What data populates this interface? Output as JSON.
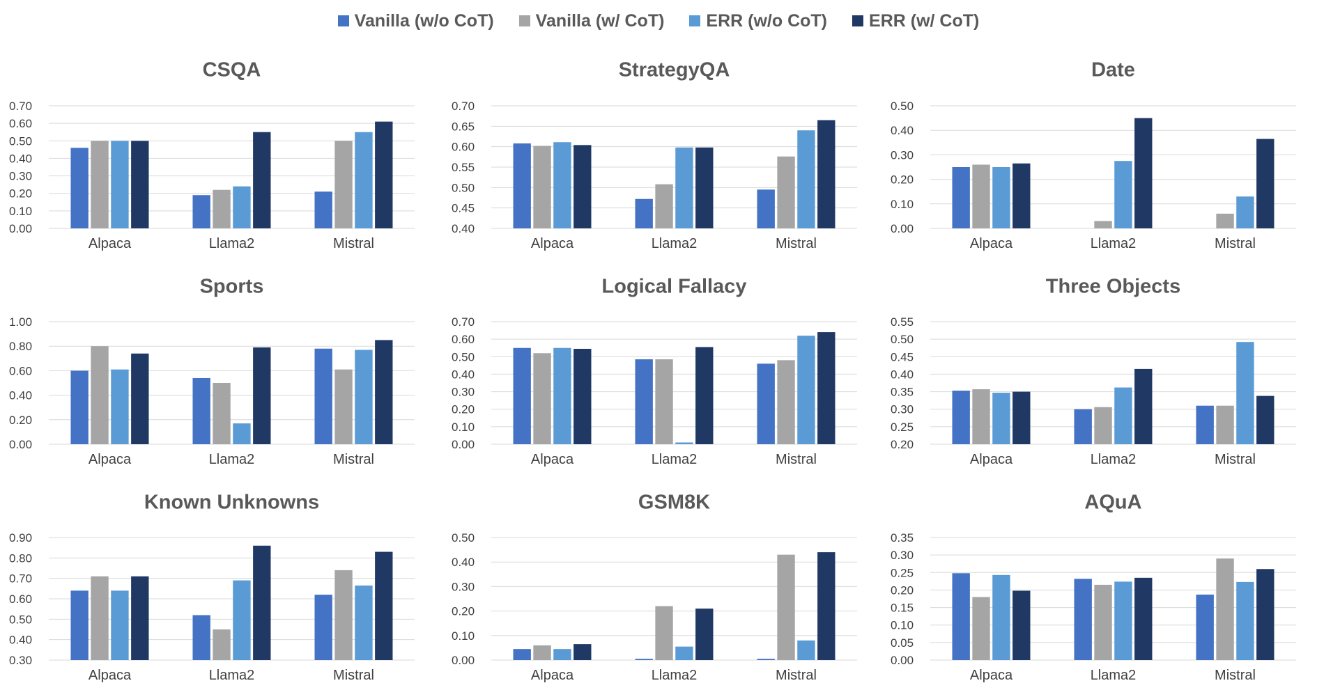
{
  "legend": [
    {
      "name": "Vanilla (w/o CoT)",
      "color": "#4472C4"
    },
    {
      "name": "Vanilla (w/ CoT)",
      "color": "#A5A5A5"
    },
    {
      "name": "ERR (w/o CoT)",
      "color": "#5B9BD5"
    },
    {
      "name": "ERR (w/ CoT)",
      "color": "#203864"
    }
  ],
  "chart_data": [
    {
      "type": "bar",
      "title": "CSQA",
      "categories": [
        "Alpaca",
        "Llama2",
        "Mistral"
      ],
      "ylim": [
        0,
        0.7
      ],
      "yticks": [
        "0.00",
        "0.10",
        "0.20",
        "0.30",
        "0.40",
        "0.50",
        "0.60",
        "0.70"
      ],
      "series": [
        {
          "name": "Vanilla (w/o CoT)",
          "values": [
            0.46,
            0.19,
            0.21
          ]
        },
        {
          "name": "Vanilla (w/ CoT)",
          "values": [
            0.5,
            0.22,
            0.5
          ]
        },
        {
          "name": "ERR (w/o CoT)",
          "values": [
            0.5,
            0.24,
            0.55
          ]
        },
        {
          "name": "ERR (w/ CoT)",
          "values": [
            0.5,
            0.55,
            0.61
          ]
        }
      ]
    },
    {
      "type": "bar",
      "title": "StrategyQA",
      "categories": [
        "Alpaca",
        "Llama2",
        "Mistral"
      ],
      "ylim": [
        0.4,
        0.7
      ],
      "yticks": [
        "0.40",
        "0.45",
        "0.50",
        "0.55",
        "0.60",
        "0.65",
        "0.70"
      ],
      "series": [
        {
          "name": "Vanilla (w/o CoT)",
          "values": [
            0.608,
            0.472,
            0.495
          ]
        },
        {
          "name": "Vanilla (w/ CoT)",
          "values": [
            0.602,
            0.508,
            0.576
          ]
        },
        {
          "name": "ERR (w/o CoT)",
          "values": [
            0.611,
            0.598,
            0.64
          ]
        },
        {
          "name": "ERR (w/ CoT)",
          "values": [
            0.604,
            0.598,
            0.665
          ]
        }
      ]
    },
    {
      "type": "bar",
      "title": "Date",
      "categories": [
        "Alpaca",
        "Llama2",
        "Mistral"
      ],
      "ylim": [
        0,
        0.5
      ],
      "yticks": [
        "0.00",
        "0.10",
        "0.20",
        "0.30",
        "0.40",
        "0.50"
      ],
      "series": [
        {
          "name": "Vanilla (w/o CoT)",
          "values": [
            0.25,
            0.0,
            0.0
          ]
        },
        {
          "name": "Vanilla (w/ CoT)",
          "values": [
            0.26,
            0.03,
            0.06
          ]
        },
        {
          "name": "ERR (w/o CoT)",
          "values": [
            0.25,
            0.275,
            0.13
          ]
        },
        {
          "name": "ERR (w/ CoT)",
          "values": [
            0.265,
            0.45,
            0.365
          ]
        }
      ]
    },
    {
      "type": "bar",
      "title": "Sports",
      "categories": [
        "Alpaca",
        "Llama2",
        "Mistral"
      ],
      "ylim": [
        0,
        1.0
      ],
      "yticks": [
        "0.00",
        "0.20",
        "0.40",
        "0.60",
        "0.80",
        "1.00"
      ],
      "series": [
        {
          "name": "Vanilla (w/o CoT)",
          "values": [
            0.6,
            0.54,
            0.78
          ]
        },
        {
          "name": "Vanilla (w/ CoT)",
          "values": [
            0.8,
            0.5,
            0.61
          ]
        },
        {
          "name": "ERR (w/o CoT)",
          "values": [
            0.61,
            0.17,
            0.77
          ]
        },
        {
          "name": "ERR (w/ CoT)",
          "values": [
            0.74,
            0.79,
            0.85
          ]
        }
      ]
    },
    {
      "type": "bar",
      "title": "Logical Fallacy",
      "categories": [
        "Alpaca",
        "Llama2",
        "Mistral"
      ],
      "ylim": [
        0,
        0.7
      ],
      "yticks": [
        "0.00",
        "0.10",
        "0.20",
        "0.30",
        "0.40",
        "0.50",
        "0.60",
        "0.70"
      ],
      "series": [
        {
          "name": "Vanilla (w/o CoT)",
          "values": [
            0.55,
            0.485,
            0.46
          ]
        },
        {
          "name": "Vanilla (w/ CoT)",
          "values": [
            0.52,
            0.485,
            0.48
          ]
        },
        {
          "name": "ERR (w/o CoT)",
          "values": [
            0.55,
            0.01,
            0.62
          ]
        },
        {
          "name": "ERR (w/ CoT)",
          "values": [
            0.545,
            0.555,
            0.64
          ]
        }
      ]
    },
    {
      "type": "bar",
      "title": "Three Objects",
      "categories": [
        "Alpaca",
        "Llama2",
        "Mistral"
      ],
      "ylim": [
        0.2,
        0.55
      ],
      "yticks": [
        "0.20",
        "0.25",
        "0.30",
        "0.35",
        "0.40",
        "0.45",
        "0.50",
        "0.55"
      ],
      "series": [
        {
          "name": "Vanilla (w/o CoT)",
          "values": [
            0.353,
            0.3,
            0.31
          ]
        },
        {
          "name": "Vanilla (w/ CoT)",
          "values": [
            0.357,
            0.306,
            0.31
          ]
        },
        {
          "name": "ERR (w/o CoT)",
          "values": [
            0.347,
            0.362,
            0.492
          ]
        },
        {
          "name": "ERR (w/ CoT)",
          "values": [
            0.35,
            0.415,
            0.338
          ]
        }
      ]
    },
    {
      "type": "bar",
      "title": "Known Unknowns",
      "categories": [
        "Alpaca",
        "Llama2",
        "Mistral"
      ],
      "ylim": [
        0.3,
        0.9
      ],
      "yticks": [
        "0.30",
        "0.40",
        "0.50",
        "0.60",
        "0.70",
        "0.80",
        "0.90"
      ],
      "series": [
        {
          "name": "Vanilla (w/o CoT)",
          "values": [
            0.64,
            0.52,
            0.62
          ]
        },
        {
          "name": "Vanilla (w/ CoT)",
          "values": [
            0.71,
            0.45,
            0.74
          ]
        },
        {
          "name": "ERR (w/o CoT)",
          "values": [
            0.64,
            0.69,
            0.665
          ]
        },
        {
          "name": "ERR (w/ CoT)",
          "values": [
            0.71,
            0.86,
            0.83
          ]
        }
      ]
    },
    {
      "type": "bar",
      "title": "GSM8K",
      "categories": [
        "Alpaca",
        "Llama2",
        "Mistral"
      ],
      "ylim": [
        0,
        0.5
      ],
      "yticks": [
        "0.00",
        "0.10",
        "0.20",
        "0.30",
        "0.40",
        "0.50"
      ],
      "series": [
        {
          "name": "Vanilla (w/o CoT)",
          "values": [
            0.045,
            0.005,
            0.005
          ]
        },
        {
          "name": "Vanilla (w/ CoT)",
          "values": [
            0.06,
            0.22,
            0.43
          ]
        },
        {
          "name": "ERR (w/o CoT)",
          "values": [
            0.045,
            0.055,
            0.08
          ]
        },
        {
          "name": "ERR (w/ CoT)",
          "values": [
            0.065,
            0.21,
            0.44
          ]
        }
      ]
    },
    {
      "type": "bar",
      "title": "AQuA",
      "categories": [
        "Alpaca",
        "Llama2",
        "Mistral"
      ],
      "ylim": [
        0,
        0.35
      ],
      "yticks": [
        "0.00",
        "0.05",
        "0.10",
        "0.15",
        "0.20",
        "0.25",
        "0.30",
        "0.35"
      ],
      "series": [
        {
          "name": "Vanilla (w/o CoT)",
          "values": [
            0.248,
            0.232,
            0.187
          ]
        },
        {
          "name": "Vanilla (w/ CoT)",
          "values": [
            0.18,
            0.215,
            0.29
          ]
        },
        {
          "name": "ERR (w/o CoT)",
          "values": [
            0.243,
            0.224,
            0.223
          ]
        },
        {
          "name": "ERR (w/ CoT)",
          "values": [
            0.198,
            0.235,
            0.26
          ]
        }
      ]
    }
  ]
}
